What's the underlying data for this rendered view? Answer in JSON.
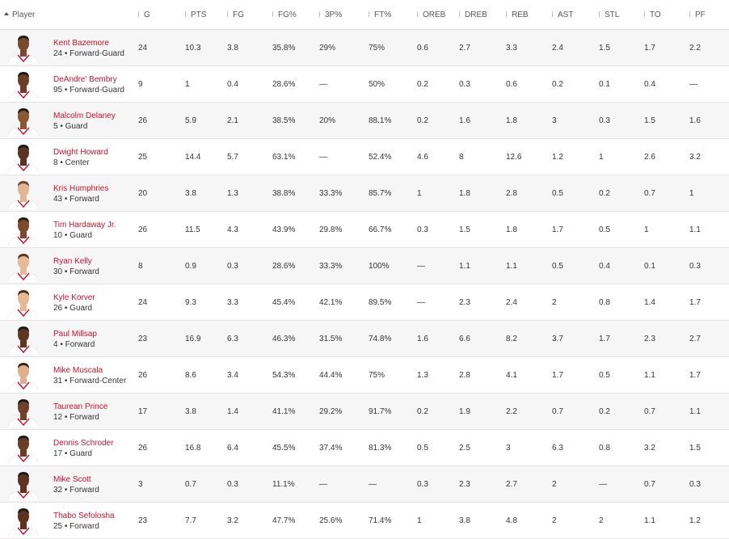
{
  "accent_color": "#c8102e",
  "columns": [
    "Player",
    "G",
    "PTS",
    "FG",
    "FG%",
    "3P%",
    "FT%",
    "OREB",
    "DREB",
    "REB",
    "AST",
    "STL",
    "TO",
    "PF"
  ],
  "sort": {
    "column": "Player",
    "direction": "ascending",
    "icon": "caret-up-icon"
  },
  "players": [
    {
      "name": "Kent Bazemore",
      "meta": "24 • Forward-Guard",
      "skin": "#7a4a2e",
      "hair": "#1a1a1a",
      "stats": [
        "24",
        "10.3",
        "3.8",
        "35.8%",
        "29%",
        "75%",
        "0.6",
        "2.7",
        "3.3",
        "2.4",
        "1.5",
        "1.7",
        "2.2"
      ]
    },
    {
      "name": "DeAndre' Bembry",
      "meta": "95 • Forward-Guard",
      "skin": "#6b3f27",
      "hair": "#1a1a1a",
      "stats": [
        "9",
        "1",
        "0.4",
        "28.6%",
        "—",
        "50%",
        "0.2",
        "0.3",
        "0.6",
        "0.2",
        "0.1",
        "0.4",
        "—"
      ]
    },
    {
      "name": "Malcolm Delaney",
      "meta": "5 • Guard",
      "skin": "#8a5636",
      "hair": "#1a1a1a",
      "stats": [
        "26",
        "5.9",
        "2.1",
        "38.5%",
        "20%",
        "88.1%",
        "0.2",
        "1.6",
        "1.8",
        "3",
        "0.3",
        "1.5",
        "1.6"
      ]
    },
    {
      "name": "Dwight Howard",
      "meta": "8 • Center",
      "skin": "#5a3420",
      "hair": "#1a1a1a",
      "stats": [
        "25",
        "14.4",
        "5.7",
        "63.1%",
        "—",
        "52.4%",
        "4.6",
        "8",
        "12.6",
        "1.2",
        "1",
        "2.6",
        "3.2"
      ]
    },
    {
      "name": "Kris Humphries",
      "meta": "43 • Forward",
      "skin": "#e2b594",
      "hair": "#6b4a30",
      "stats": [
        "20",
        "3.8",
        "1.3",
        "38.8%",
        "33.3%",
        "85.7%",
        "1",
        "1.8",
        "2.8",
        "0.5",
        "0.2",
        "0.7",
        "1"
      ]
    },
    {
      "name": "Tim Hardaway Jr.",
      "meta": "10 • Guard",
      "skin": "#7c4b2f",
      "hair": "#2a1a10",
      "stats": [
        "26",
        "11.5",
        "4.3",
        "43.9%",
        "29.8%",
        "66.7%",
        "0.3",
        "1.5",
        "1.8",
        "1.7",
        "0.5",
        "1",
        "1.1"
      ]
    },
    {
      "name": "Ryan Kelly",
      "meta": "30 • Forward",
      "skin": "#e7bb9a",
      "hair": "#5a3a22",
      "stats": [
        "8",
        "0.9",
        "0.3",
        "28.6%",
        "33.3%",
        "100%",
        "—",
        "1.1",
        "1.1",
        "0.5",
        "0.4",
        "0.1",
        "0.3"
      ]
    },
    {
      "name": "Kyle Korver",
      "meta": "26 • Guard",
      "skin": "#e6b896",
      "hair": "#4a2e18",
      "stats": [
        "24",
        "9.3",
        "3.3",
        "45.4%",
        "42.1%",
        "89.5%",
        "—",
        "2.3",
        "2.4",
        "2",
        "0.8",
        "1.4",
        "1.7"
      ]
    },
    {
      "name": "Paul Millsap",
      "meta": "4 • Forward",
      "skin": "#5e3722",
      "hair": "#1a1a1a",
      "stats": [
        "23",
        "16.9",
        "6.3",
        "46.3%",
        "31.5%",
        "74.8%",
        "1.6",
        "6.6",
        "8.2",
        "3.7",
        "1.7",
        "2.3",
        "2.7"
      ]
    },
    {
      "name": "Mike Muscala",
      "meta": "31 • Forward-Center",
      "skin": "#e0b08e",
      "hair": "#3a2616",
      "stats": [
        "26",
        "8.6",
        "3.4",
        "54.3%",
        "44.4%",
        "75%",
        "1.3",
        "2.8",
        "4.1",
        "1.7",
        "0.5",
        "1.1",
        "1.7"
      ]
    },
    {
      "name": "Taurean Prince",
      "meta": "12 • Forward",
      "skin": "#6e4128",
      "hair": "#1a1a1a",
      "stats": [
        "17",
        "3.8",
        "1.4",
        "41.1%",
        "29.2%",
        "91.7%",
        "0.2",
        "1.9",
        "2.2",
        "0.7",
        "0.2",
        "0.7",
        "1.1"
      ]
    },
    {
      "name": "Dennis Schroder",
      "meta": "17 • Guard",
      "skin": "#6a3e26",
      "hair": "#1a1a1a",
      "stats": [
        "26",
        "16.8",
        "6.4",
        "45.5%",
        "37.4%",
        "81.3%",
        "0.5",
        "2.5",
        "3",
        "6.3",
        "0.8",
        "3.2",
        "1.5"
      ]
    },
    {
      "name": "Mike Scott",
      "meta": "32 • Forward",
      "skin": "#5c3521",
      "hair": "#1a1a1a",
      "stats": [
        "3",
        "0.7",
        "0.3",
        "11.1%",
        "—",
        "—",
        "0.3",
        "2.3",
        "2.7",
        "2",
        "—",
        "0.7",
        "0.3"
      ]
    },
    {
      "name": "Thabo Sefolosha",
      "meta": "25 • Forward",
      "skin": "#5a321e",
      "hair": "#1a1a1a",
      "stats": [
        "23",
        "7.7",
        "3.2",
        "47.7%",
        "25.6%",
        "71.4%",
        "1",
        "3.8",
        "4.8",
        "2",
        "2",
        "1.1",
        "1.2"
      ]
    }
  ]
}
